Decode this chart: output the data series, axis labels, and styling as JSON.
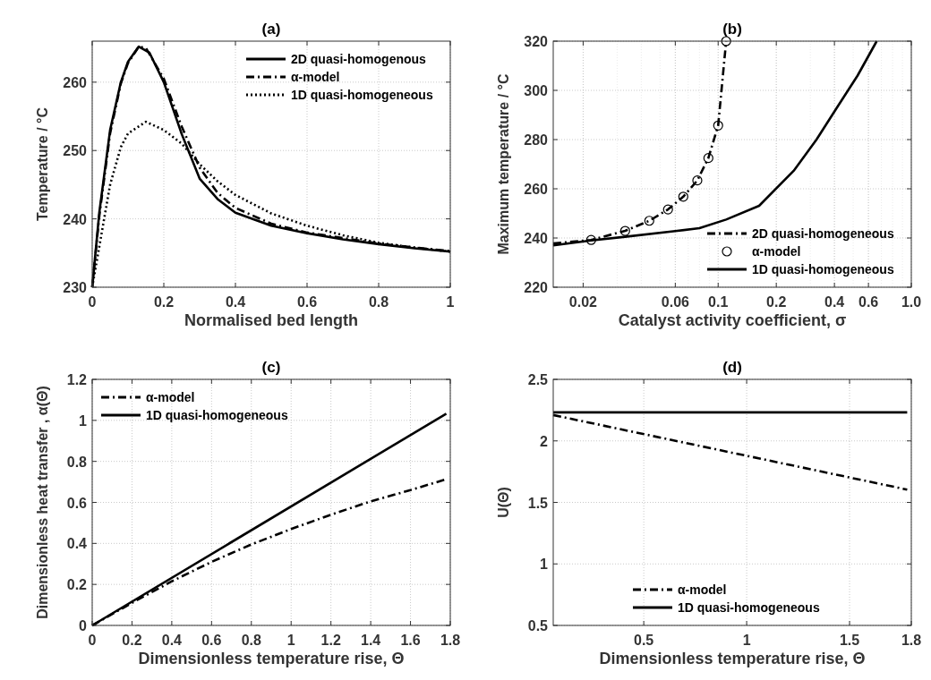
{
  "chart_data": [
    {
      "type": "line",
      "title": "(a)",
      "xlabel": "Normalised bed length",
      "ylabel": "Temperature / °C",
      "xlim": [
        0,
        1
      ],
      "ylim": [
        230,
        266
      ],
      "xticks": [
        0,
        0.2,
        0.4,
        0.6,
        0.8,
        1
      ],
      "yticks": [
        230,
        240,
        250,
        260
      ],
      "grid": true,
      "legend": "top right",
      "series": [
        {
          "name": "2D quasi-homogenous",
          "color": "#000000",
          "line_style": "solid",
          "x": [
            0,
            0.02,
            0.05,
            0.08,
            0.1,
            0.13,
            0.16,
            0.2,
            0.25,
            0.3,
            0.35,
            0.4,
            0.5,
            0.6,
            0.7,
            0.8,
            0.9,
            1
          ],
          "values": [
            230,
            241,
            253,
            260,
            263,
            265.2,
            264.3,
            260,
            252.4,
            245.9,
            242.9,
            240.9,
            239,
            237.9,
            237,
            236.3,
            235.7,
            235.2
          ]
        },
        {
          "name": "α-model",
          "color": "#000000",
          "line_style": "dashdot",
          "x": [
            0,
            0.02,
            0.05,
            0.08,
            0.1,
            0.13,
            0.15,
            0.2,
            0.25,
            0.3,
            0.35,
            0.4,
            0.5,
            0.6,
            0.7,
            0.8,
            0.9,
            1
          ],
          "values": [
            230,
            240.5,
            252.5,
            259.8,
            262.8,
            265.2,
            265,
            260.5,
            253.5,
            247.5,
            243.8,
            241.6,
            239.3,
            238,
            237.2,
            236.4,
            235.8,
            235.3
          ]
        },
        {
          "name": "1D quasi-homogeneous",
          "color": "#000000",
          "line_style": "dotted",
          "x": [
            0,
            0.02,
            0.05,
            0.08,
            0.1,
            0.15,
            0.2,
            0.25,
            0.3,
            0.35,
            0.4,
            0.5,
            0.6,
            0.7,
            0.8,
            0.9,
            1
          ],
          "values": [
            230,
            236,
            245,
            250.5,
            252.5,
            254.2,
            253,
            251,
            248,
            245.5,
            243.5,
            240.8,
            239,
            237.6,
            236.5,
            235.8,
            235.2
          ]
        }
      ]
    },
    {
      "type": "line",
      "title": "(b)",
      "xlabel": "Catalyst activity coefficient, σ",
      "ylabel": "Maximum temperature / °C",
      "log": "x",
      "xlim": [
        0.014,
        1
      ],
      "ylim": [
        220,
        320
      ],
      "xticks": [
        0.02,
        0.06,
        0.1,
        0.2,
        0.4,
        0.6,
        {
          "value": 1,
          "label": "1.0"
        }
      ],
      "yticks": [
        220,
        240,
        260,
        280,
        300,
        320
      ],
      "grid": true,
      "legend": "bottom right",
      "series": [
        {
          "name": "2D quasi-homogeneous",
          "color": "#000000",
          "line_style": "dashdot",
          "x": [
            0.014,
            0.022,
            0.033,
            0.044,
            0.055,
            0.066,
            0.078,
            0.089,
            0.1,
            0.11
          ],
          "values": [
            237.8,
            239.2,
            242.9,
            247,
            251.6,
            256.8,
            263.4,
            272.5,
            285.7,
            320
          ]
        },
        {
          "name": "α-model",
          "type": "scatter",
          "color": "#000000",
          "marker": "circle",
          "x": [
            0.022,
            0.033,
            0.044,
            0.055,
            0.066,
            0.078,
            0.089,
            0.1,
            0.11
          ],
          "values": [
            239.2,
            242.9,
            247,
            251.6,
            256.8,
            263.4,
            272.5,
            285.7,
            320
          ]
        },
        {
          "name": "1D quasi-homogeneous",
          "color": "#000000",
          "line_style": "solid",
          "x": [
            0.014,
            0.022,
            0.033,
            0.06,
            0.08,
            0.11,
            0.163,
            0.246,
            0.323,
            0.41,
            0.527,
            0.662
          ],
          "values": [
            237,
            239,
            240.5,
            242.8,
            244,
            247.5,
            253.1,
            267.3,
            280,
            292.7,
            306,
            320
          ]
        }
      ]
    },
    {
      "type": "line",
      "title": "(c)",
      "xlabel": "Dimensionless temperature rise, Θ",
      "ylabel": "Dimensionless heat transfer , α(Θ)",
      "xlim": [
        0,
        1.8
      ],
      "ylim": [
        0,
        1.2
      ],
      "xticks": [
        0,
        0.2,
        0.4,
        0.6,
        0.8,
        1,
        1.2,
        1.4,
        1.6,
        1.8
      ],
      "yticks": [
        0,
        0.2,
        0.4,
        0.6,
        0.8,
        1,
        1.2
      ],
      "grid": true,
      "legend": "top left",
      "series": [
        {
          "name": "α-model",
          "color": "#000000",
          "line_style": "dashdot",
          "x": [
            0,
            0.2,
            0.4,
            0.6,
            0.8,
            1,
            1.2,
            1.4,
            1.6,
            1.78
          ],
          "values": [
            0,
            0.11,
            0.215,
            0.31,
            0.395,
            0.47,
            0.54,
            0.605,
            0.66,
            0.713
          ]
        },
        {
          "name": "1D quasi-homogeneous",
          "color": "#000000",
          "line_style": "solid",
          "x": [
            0,
            1.78
          ],
          "values": [
            0,
            1.033
          ]
        }
      ]
    },
    {
      "type": "line",
      "title": "(d)",
      "xlabel": "Dimensionless temperature rise, Θ",
      "ylabel": "U(Θ)",
      "xlim": [
        0.06,
        1.8
      ],
      "ylim": [
        0.5,
        2.5
      ],
      "xticks": [
        0.5,
        1,
        1.5,
        1.8
      ],
      "yticks": [
        0.5,
        1,
        1.5,
        2,
        2.5
      ],
      "grid": true,
      "legend": "bottom",
      "series": [
        {
          "name": "α-model",
          "color": "#000000",
          "line_style": "dashdot",
          "x": [
            0.06,
            1.78
          ],
          "values": [
            2.21,
            1.604
          ]
        },
        {
          "name": "1D quasi-homogeneous",
          "color": "#000000",
          "line_style": "solid",
          "x": [
            0.06,
            1.78
          ],
          "values": [
            2.232,
            2.232
          ]
        }
      ]
    }
  ]
}
